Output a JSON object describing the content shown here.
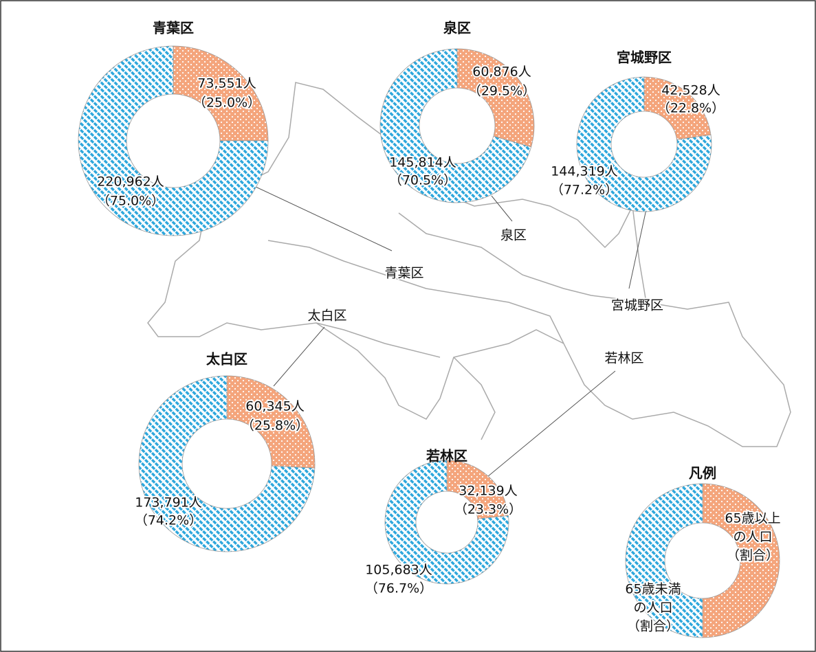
{
  "chart_data": [
    {
      "type": "pie",
      "title": "青葉区",
      "categories": [
        "65歳以上",
        "65歳未満"
      ],
      "values": [
        73551,
        220962
      ],
      "value_labels": [
        "73,551人",
        "220,962人"
      ],
      "percent_labels": [
        "（25.0%）",
        "（75.0%）"
      ],
      "colors": [
        "#f4a57c",
        "#2ea7dc"
      ]
    },
    {
      "type": "pie",
      "title": "泉区",
      "categories": [
        "65歳以上",
        "65歳未満"
      ],
      "values": [
        60876,
        145814
      ],
      "value_labels": [
        "60,876人",
        "145,814人"
      ],
      "percent_labels": [
        "（29.5%）",
        "（70.5%）"
      ],
      "colors": [
        "#f4a57c",
        "#2ea7dc"
      ]
    },
    {
      "type": "pie",
      "title": "宮城野区",
      "categories": [
        "65歳以上",
        "65歳未満"
      ],
      "values": [
        42528,
        144319
      ],
      "value_labels": [
        "42,528人",
        "144,319人"
      ],
      "percent_labels": [
        "（22.8%）",
        "（77.2%）"
      ],
      "colors": [
        "#f4a57c",
        "#2ea7dc"
      ]
    },
    {
      "type": "pie",
      "title": "太白区",
      "categories": [
        "65歳以上",
        "65歳未満"
      ],
      "values": [
        60345,
        173791
      ],
      "value_labels": [
        "60,345人",
        "173,791人"
      ],
      "percent_labels": [
        "（25.8%）",
        "（74.2%）"
      ],
      "colors": [
        "#f4a57c",
        "#2ea7dc"
      ]
    },
    {
      "type": "pie",
      "title": "若林区",
      "categories": [
        "65歳以上",
        "65歳未満"
      ],
      "values": [
        32139,
        105683
      ],
      "value_labels": [
        "32,139人",
        "105,683人"
      ],
      "percent_labels": [
        "（23.3%）",
        "（76.7%）"
      ],
      "colors": [
        "#f4a57c",
        "#2ea7dc"
      ]
    }
  ],
  "legend": {
    "title": "凡例",
    "entries": [
      {
        "lines": [
          "65歳以上",
          "の人口",
          "（割合）"
        ],
        "color": "#f4a57c"
      },
      {
        "lines": [
          "65歳未満",
          "の人口",
          "（割合）"
        ],
        "color": "#2ea7dc"
      }
    ]
  },
  "map_labels": [
    "青葉区",
    "泉区",
    "宮城野区",
    "太白区",
    "若林区"
  ]
}
